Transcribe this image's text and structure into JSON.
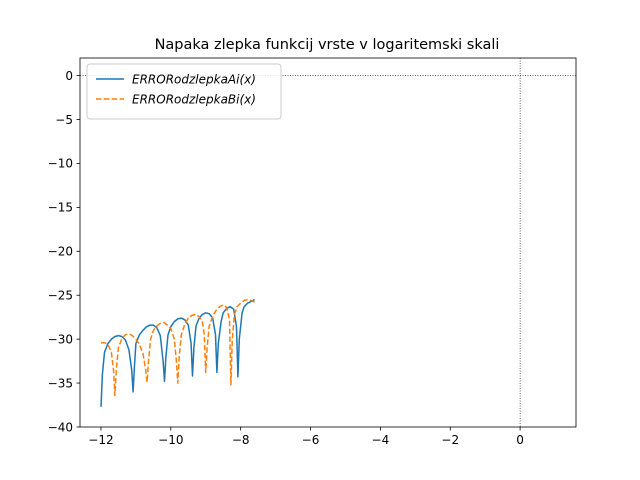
{
  "chart_data": {
    "type": "line",
    "title": "Napaka zlepka funkcij vrste v logaritemski skali",
    "xlabel": "",
    "ylabel": "",
    "xlim": [
      -12.6,
      1.6
    ],
    "ylim": [
      -40,
      2
    ],
    "xticks": [
      -12,
      -10,
      -8,
      -6,
      -4,
      -2,
      0
    ],
    "yticks": [
      0,
      -5,
      -10,
      -15,
      -20,
      -25,
      -30,
      -35,
      -40
    ],
    "xtick_labels": [
      "−12",
      "−10",
      "−8",
      "−6",
      "−4",
      "−2",
      "0"
    ],
    "ytick_labels": [
      "0",
      "−5",
      "−10",
      "−15",
      "−20",
      "−25",
      "−30",
      "−35",
      "−40"
    ],
    "grid": false,
    "reference_lines": {
      "x": 0,
      "y": 0,
      "style": "dotted"
    },
    "legend": "top-left",
    "series": [
      {
        "name": "ERRORodzlepkaAi(x)",
        "legend_label": "ERRORodzlepkaAi(x)",
        "legend_name": "ERRORodzlepkaAi",
        "legend_arg": "(x)",
        "color": "#1f77b4",
        "style": "solid",
        "x": [
          -12.0,
          -11.96,
          -11.9,
          -11.8,
          -11.7,
          -11.6,
          -11.5,
          -11.4,
          -11.3,
          -11.2,
          -11.12,
          -11.08,
          -11.04,
          -11.0,
          -10.9,
          -10.8,
          -10.7,
          -10.6,
          -10.5,
          -10.4,
          -10.3,
          -10.22,
          -10.18,
          -10.14,
          -10.08,
          -10.0,
          -9.9,
          -9.8,
          -9.7,
          -9.6,
          -9.5,
          -9.42,
          -9.38,
          -9.34,
          -9.28,
          -9.2,
          -9.1,
          -9.0,
          -8.9,
          -8.8,
          -8.72,
          -8.68,
          -8.64,
          -8.56,
          -8.5,
          -8.4,
          -8.3,
          -8.2,
          -8.12,
          -8.08,
          -8.04,
          -7.96,
          -7.9,
          -7.8,
          -7.7,
          -7.6
        ],
        "y": [
          -37.7,
          -34.0,
          -31.5,
          -30.5,
          -30.0,
          -29.7,
          -29.6,
          -29.7,
          -30.1,
          -31.2,
          -33.5,
          -36.0,
          -33.0,
          -30.5,
          -29.5,
          -29.0,
          -28.6,
          -28.4,
          -28.4,
          -28.7,
          -29.6,
          -32.5,
          -34.8,
          -32.0,
          -29.5,
          -28.6,
          -28.0,
          -27.7,
          -27.6,
          -27.8,
          -28.4,
          -30.5,
          -34.2,
          -31.0,
          -28.5,
          -27.7,
          -27.2,
          -27.0,
          -27.1,
          -27.6,
          -29.5,
          -33.8,
          -30.5,
          -28.0,
          -27.0,
          -26.5,
          -26.3,
          -26.6,
          -28.6,
          -34.3,
          -30.0,
          -27.0,
          -26.3,
          -25.9,
          -25.7,
          -25.5
        ]
      },
      {
        "name": "ERRORodzlepkaBi(x)",
        "legend_label": "ERRORodzlepkaBi(x)",
        "legend_name": "ERRORodzlepkaBi",
        "legend_arg": "(x)",
        "color": "#ff7f0e",
        "style": "dashed",
        "x": [
          -12.0,
          -11.9,
          -11.8,
          -11.7,
          -11.64,
          -11.6,
          -11.56,
          -11.5,
          -11.4,
          -11.3,
          -11.2,
          -11.1,
          -11.0,
          -10.9,
          -10.8,
          -10.72,
          -10.68,
          -10.64,
          -10.58,
          -10.5,
          -10.4,
          -10.3,
          -10.2,
          -10.1,
          -10.0,
          -9.9,
          -9.84,
          -9.8,
          -9.76,
          -9.7,
          -9.6,
          -9.5,
          -9.4,
          -9.3,
          -9.2,
          -9.1,
          -9.04,
          -9.0,
          -8.96,
          -8.9,
          -8.8,
          -8.7,
          -8.6,
          -8.5,
          -8.4,
          -8.32,
          -8.28,
          -8.24,
          -8.18,
          -8.1,
          -8.0,
          -7.9,
          -7.8,
          -7.7,
          -7.6
        ],
        "y": [
          -30.4,
          -30.4,
          -30.6,
          -31.5,
          -33.5,
          -36.4,
          -33.5,
          -31.0,
          -29.9,
          -29.5,
          -29.4,
          -29.6,
          -30.0,
          -30.6,
          -31.6,
          -33.5,
          -34.9,
          -32.5,
          -30.0,
          -29.0,
          -28.5,
          -28.2,
          -28.1,
          -28.4,
          -28.8,
          -30.0,
          -32.5,
          -35.0,
          -32.0,
          -29.5,
          -28.3,
          -27.6,
          -27.3,
          -27.2,
          -27.4,
          -27.9,
          -29.5,
          -33.8,
          -31.0,
          -28.5,
          -27.4,
          -26.7,
          -26.3,
          -26.1,
          -26.4,
          -27.8,
          -35.2,
          -30.0,
          -27.2,
          -26.3,
          -25.9,
          -25.6,
          -25.5,
          -25.6,
          -25.8
        ]
      }
    ]
  }
}
